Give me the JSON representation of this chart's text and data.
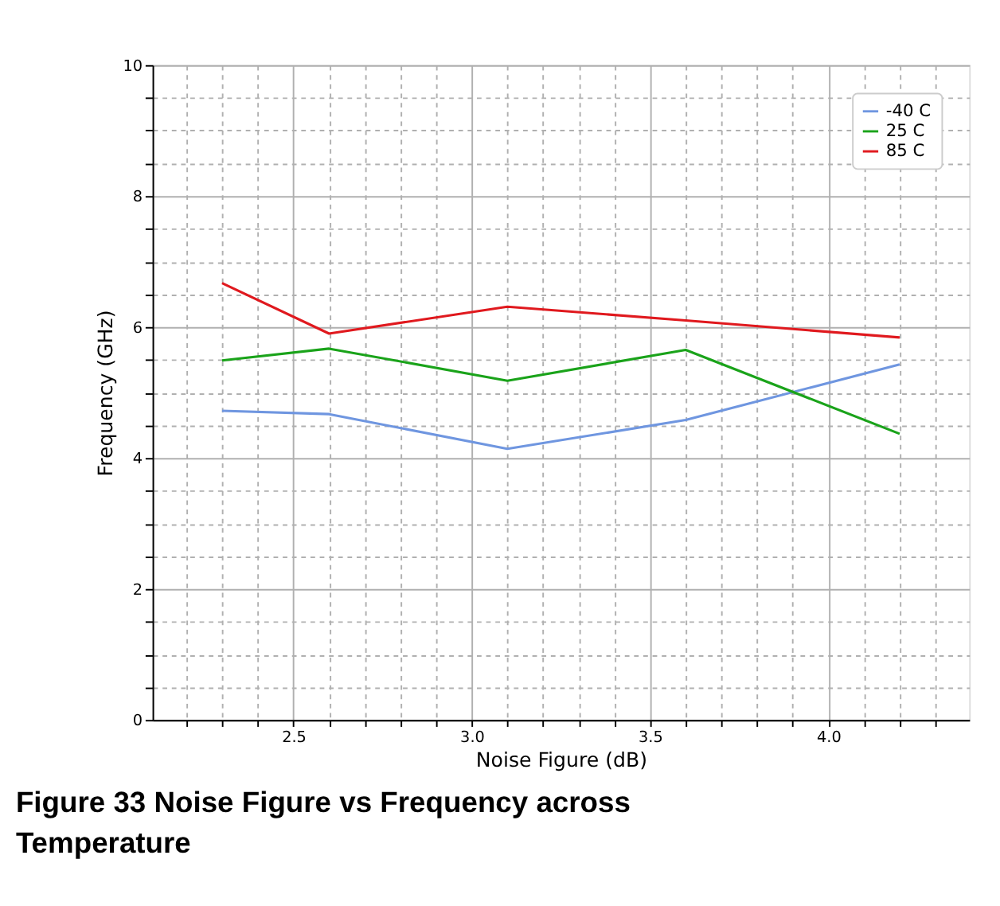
{
  "chart_data": {
    "type": "line",
    "title": "Figure 33 Noise Figure vs Frequency across Temperature",
    "xlabel": "Noise Figure (dB)",
    "ylabel": "Frequency (GHz)",
    "x": [
      2.3,
      2.6,
      3.1,
      3.6,
      4.2
    ],
    "series": [
      {
        "name": "-40 C",
        "color": "#6f96e0",
        "values": [
          4.72,
          4.67,
          4.14,
          4.58,
          5.43
        ]
      },
      {
        "name": "25 C",
        "color": "#1aa31a",
        "values": [
          5.49,
          5.67,
          5.18,
          5.65,
          4.37
        ]
      },
      {
        "name": "85 C",
        "color": "#e0191e",
        "values": [
          6.67,
          5.9,
          6.31,
          6.1,
          5.84
        ]
      }
    ],
    "xlim": [
      2.105,
      4.395
    ],
    "ylim": [
      0,
      10
    ],
    "xticks": [
      {
        "value": 2.2,
        "label": null
      },
      {
        "value": 2.3,
        "label": null
      },
      {
        "value": 2.4,
        "label": null
      },
      2.5,
      {
        "value": 2.6,
        "label": null
      },
      {
        "value": 2.7,
        "label": null
      },
      {
        "value": 2.8,
        "label": null
      },
      {
        "value": 2.9,
        "label": null
      },
      {
        "value": 3.0,
        "label": "3.0"
      },
      {
        "value": 3.1,
        "label": null
      },
      {
        "value": 3.2,
        "label": null
      },
      {
        "value": 3.3,
        "label": null
      },
      {
        "value": 3.4,
        "label": null
      },
      3.5,
      {
        "value": 3.6,
        "label": null
      },
      {
        "value": 3.7,
        "label": null
      },
      {
        "value": 3.8,
        "label": null
      },
      {
        "value": 3.9,
        "label": null
      },
      {
        "value": 4.0,
        "label": "4.0"
      },
      {
        "value": 4.1,
        "label": null
      },
      {
        "value": 4.2,
        "label": null
      },
      {
        "value": 4.3,
        "label": null
      }
    ],
    "yticks": [
      0,
      {
        "value": 0.5,
        "label": null
      },
      {
        "value": 1,
        "label": null
      },
      {
        "value": 1.5,
        "label": null
      },
      2,
      {
        "value": 2.5,
        "label": null
      },
      {
        "value": 3,
        "label": null
      },
      {
        "value": 3.5,
        "label": null
      },
      4,
      {
        "value": 4.5,
        "label": null
      },
      {
        "value": 5,
        "label": null
      },
      {
        "value": 5.5,
        "label": null
      },
      6,
      {
        "value": 6.5,
        "label": null
      },
      {
        "value": 7,
        "label": null
      },
      {
        "value": 7.5,
        "label": null
      },
      8,
      {
        "value": 8.5,
        "label": null
      },
      {
        "value": 9,
        "label": null
      },
      {
        "value": 9.5,
        "label": null
      },
      10
    ],
    "grid": true,
    "legend": "top right",
    "marker": "none",
    "line_style": "solid"
  }
}
